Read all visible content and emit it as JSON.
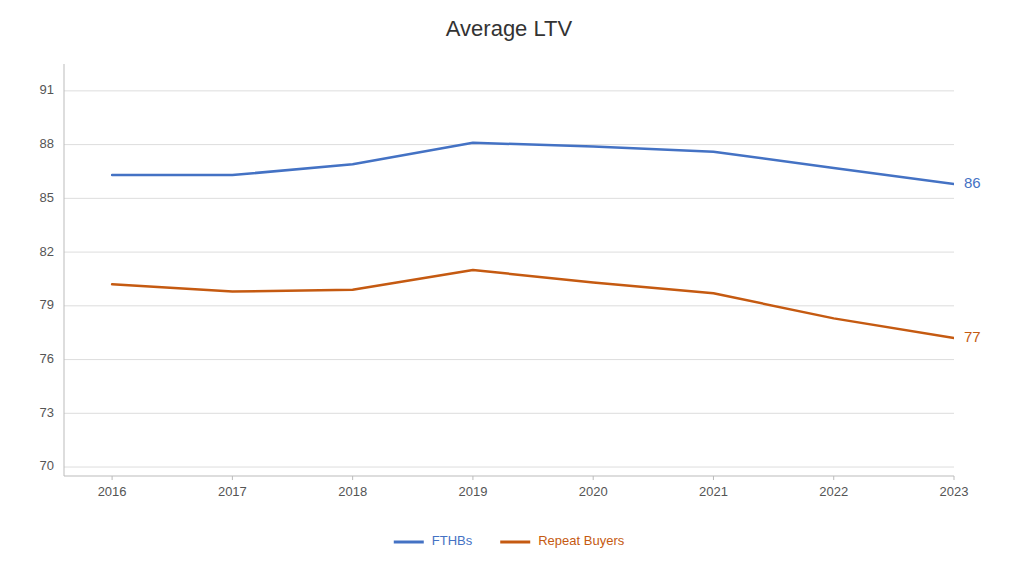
{
  "chart_data": {
    "type": "line",
    "title": "Average LTV",
    "x": [
      2016,
      2017,
      2018,
      2019,
      2020,
      2021,
      2022,
      2023
    ],
    "xlim": [
      2015.6,
      2023.0
    ],
    "xticks": [
      2016,
      2017,
      2018,
      2019,
      2020,
      2021,
      2022,
      2023
    ],
    "ylim": [
      69.5,
      92.5
    ],
    "yticks": [
      70,
      73,
      76,
      79,
      82,
      85,
      88,
      91
    ],
    "series": [
      {
        "name": "FTHBs",
        "color": "#4472C4",
        "values": [
          86.3,
          86.3,
          86.9,
          88.1,
          87.9,
          87.6,
          86.7,
          85.8
        ]
      },
      {
        "name": "Repeat Buyers",
        "color": "#C55A11",
        "values": [
          80.2,
          79.8,
          79.9,
          81.0,
          80.3,
          79.7,
          78.3,
          77.2
        ]
      }
    ],
    "annotations": [
      {
        "text": "86",
        "x": 2023,
        "y": 85.8,
        "color": "#4472C4"
      },
      {
        "text": "77",
        "x": 2023,
        "y": 77.2,
        "color": "#C55A11"
      }
    ],
    "grid": true,
    "legend": "bottom"
  }
}
